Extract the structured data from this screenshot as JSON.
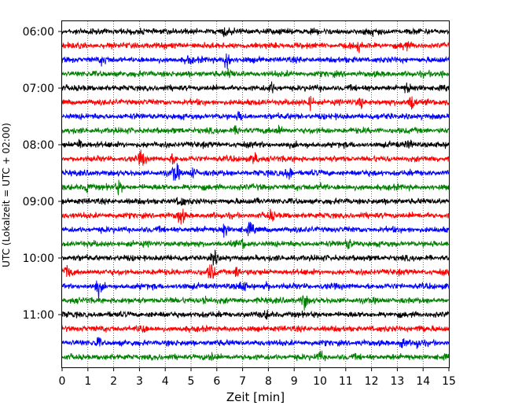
{
  "chart_data": {
    "type": "line",
    "xlabel": "Zeit  [min]",
    "ylabel": "UTC (Lokalzeit = UTC + 02:00)",
    "xlim": [
      0,
      15
    ],
    "x_ticks": [
      "0",
      "1",
      "2",
      "3",
      "4",
      "5",
      "6",
      "7",
      "8",
      "9",
      "10",
      "11",
      "12",
      "13",
      "14",
      "15"
    ],
    "y_tick_labels": [
      "06:00",
      "07:00",
      "08:00",
      "09:00",
      "10:00",
      "11:00"
    ],
    "start_time": "06:00",
    "trace_interval_min": 15,
    "grid": "vertical dotted at each minute",
    "colors": [
      "#000000",
      "#ff0000",
      "#0000ff",
      "#008000"
    ],
    "series": [
      {
        "start": "06:00",
        "bursts": [
          [
            6.3,
            0.4
          ],
          [
            12.0,
            0.3
          ]
        ]
      },
      {
        "start": "06:15",
        "bursts": [
          [
            11.5,
            0.4
          ],
          [
            13.3,
            0.4
          ]
        ]
      },
      {
        "start": "06:30",
        "bursts": [
          [
            1.6,
            0.4
          ],
          [
            4.9,
            0.4
          ],
          [
            6.4,
            1.0
          ]
        ]
      },
      {
        "start": "06:45",
        "bursts": [
          [
            6.5,
            0.4
          ],
          [
            14.8,
            0.4
          ]
        ]
      },
      {
        "start": "07:00",
        "bursts": [
          [
            8.1,
            0.4
          ],
          [
            13.4,
            0.5
          ]
        ]
      },
      {
        "start": "07:15",
        "bursts": [
          [
            9.6,
            0.6
          ],
          [
            11.6,
            0.5
          ],
          [
            13.6,
            1.0
          ]
        ]
      },
      {
        "start": "07:30",
        "bursts": [
          [
            6.9,
            0.4
          ]
        ]
      },
      {
        "start": "07:45",
        "bursts": [
          [
            6.8,
            0.4
          ],
          [
            8.4,
            0.4
          ]
        ]
      },
      {
        "start": "08:00",
        "bursts": [
          [
            0.7,
            0.6
          ],
          [
            13.5,
            0.4
          ]
        ]
      },
      {
        "start": "08:15",
        "bursts": [
          [
            3.1,
            0.8
          ],
          [
            4.3,
            0.4
          ],
          [
            7.5,
            0.6
          ]
        ]
      },
      {
        "start": "08:30",
        "bursts": [
          [
            4.4,
            1.0
          ],
          [
            5.1,
            0.5
          ],
          [
            8.8,
            0.7
          ]
        ]
      },
      {
        "start": "08:45",
        "bursts": [
          [
            1.0,
            0.5
          ],
          [
            2.2,
            0.6
          ],
          [
            10.1,
            0.4
          ]
        ]
      },
      {
        "start": "09:00",
        "bursts": [
          [
            4.6,
            0.6
          ],
          [
            7.6,
            0.4
          ]
        ]
      },
      {
        "start": "09:15",
        "bursts": [
          [
            4.6,
            1.0
          ],
          [
            8.1,
            0.5
          ]
        ]
      },
      {
        "start": "09:30",
        "bursts": [
          [
            6.3,
            0.8
          ],
          [
            7.3,
            0.5
          ]
        ]
      },
      {
        "start": "09:45",
        "bursts": [
          [
            7.0,
            0.4
          ],
          [
            11.1,
            0.5
          ]
        ]
      },
      {
        "start": "10:00",
        "bursts": [
          [
            5.9,
            0.5
          ]
        ]
      },
      {
        "start": "10:15",
        "bursts": [
          [
            0.2,
            0.7
          ],
          [
            5.8,
            1.0
          ],
          [
            6.8,
            0.6
          ]
        ]
      },
      {
        "start": "10:30",
        "bursts": [
          [
            1.4,
            0.8
          ],
          [
            7.0,
            0.6
          ],
          [
            7.9,
            0.5
          ]
        ]
      },
      {
        "start": "10:45",
        "bursts": [
          [
            5.5,
            0.5
          ],
          [
            9.4,
            0.8
          ]
        ]
      },
      {
        "start": "11:00",
        "bursts": [
          [
            7.9,
            0.3
          ]
        ]
      },
      {
        "start": "11:15",
        "bursts": [
          [
            3.1,
            0.4
          ],
          [
            13.9,
            0.4
          ]
        ]
      },
      {
        "start": "11:30",
        "bursts": [
          [
            1.4,
            0.4
          ],
          [
            13.2,
            0.6
          ],
          [
            13.8,
            0.4
          ]
        ]
      },
      {
        "start": "11:45",
        "bursts": [
          [
            5.8,
            0.4
          ],
          [
            10.0,
            0.5
          ]
        ]
      }
    ]
  }
}
